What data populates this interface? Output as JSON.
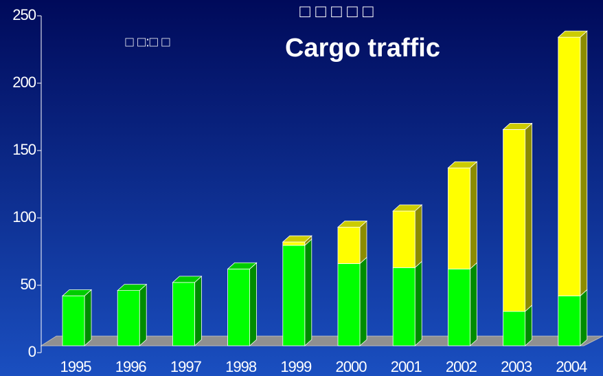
{
  "chart_data": {
    "type": "bar3d_stacked",
    "title": "Cargo traffic",
    "subtitle": "□ □ □ □ □",
    "annotation": "□ □:□ □",
    "categories": [
      "1995",
      "1996",
      "1997",
      "1998",
      "1999",
      "2000",
      "2001",
      "2002",
      "2003",
      "2004"
    ],
    "series": [
      {
        "color": "#00ff00",
        "values": [
          37,
          41,
          47,
          57,
          74.5,
          61,
          58,
          57,
          25.5,
          37
        ]
      },
      {
        "color": "#ffff00",
        "values": [
          0,
          0,
          0,
          0,
          2.5,
          27,
          42,
          75,
          135,
          192
        ]
      }
    ],
    "ylim": [
      0,
      250
    ],
    "yticks": [
      0,
      50,
      100,
      150,
      200,
      250
    ]
  }
}
